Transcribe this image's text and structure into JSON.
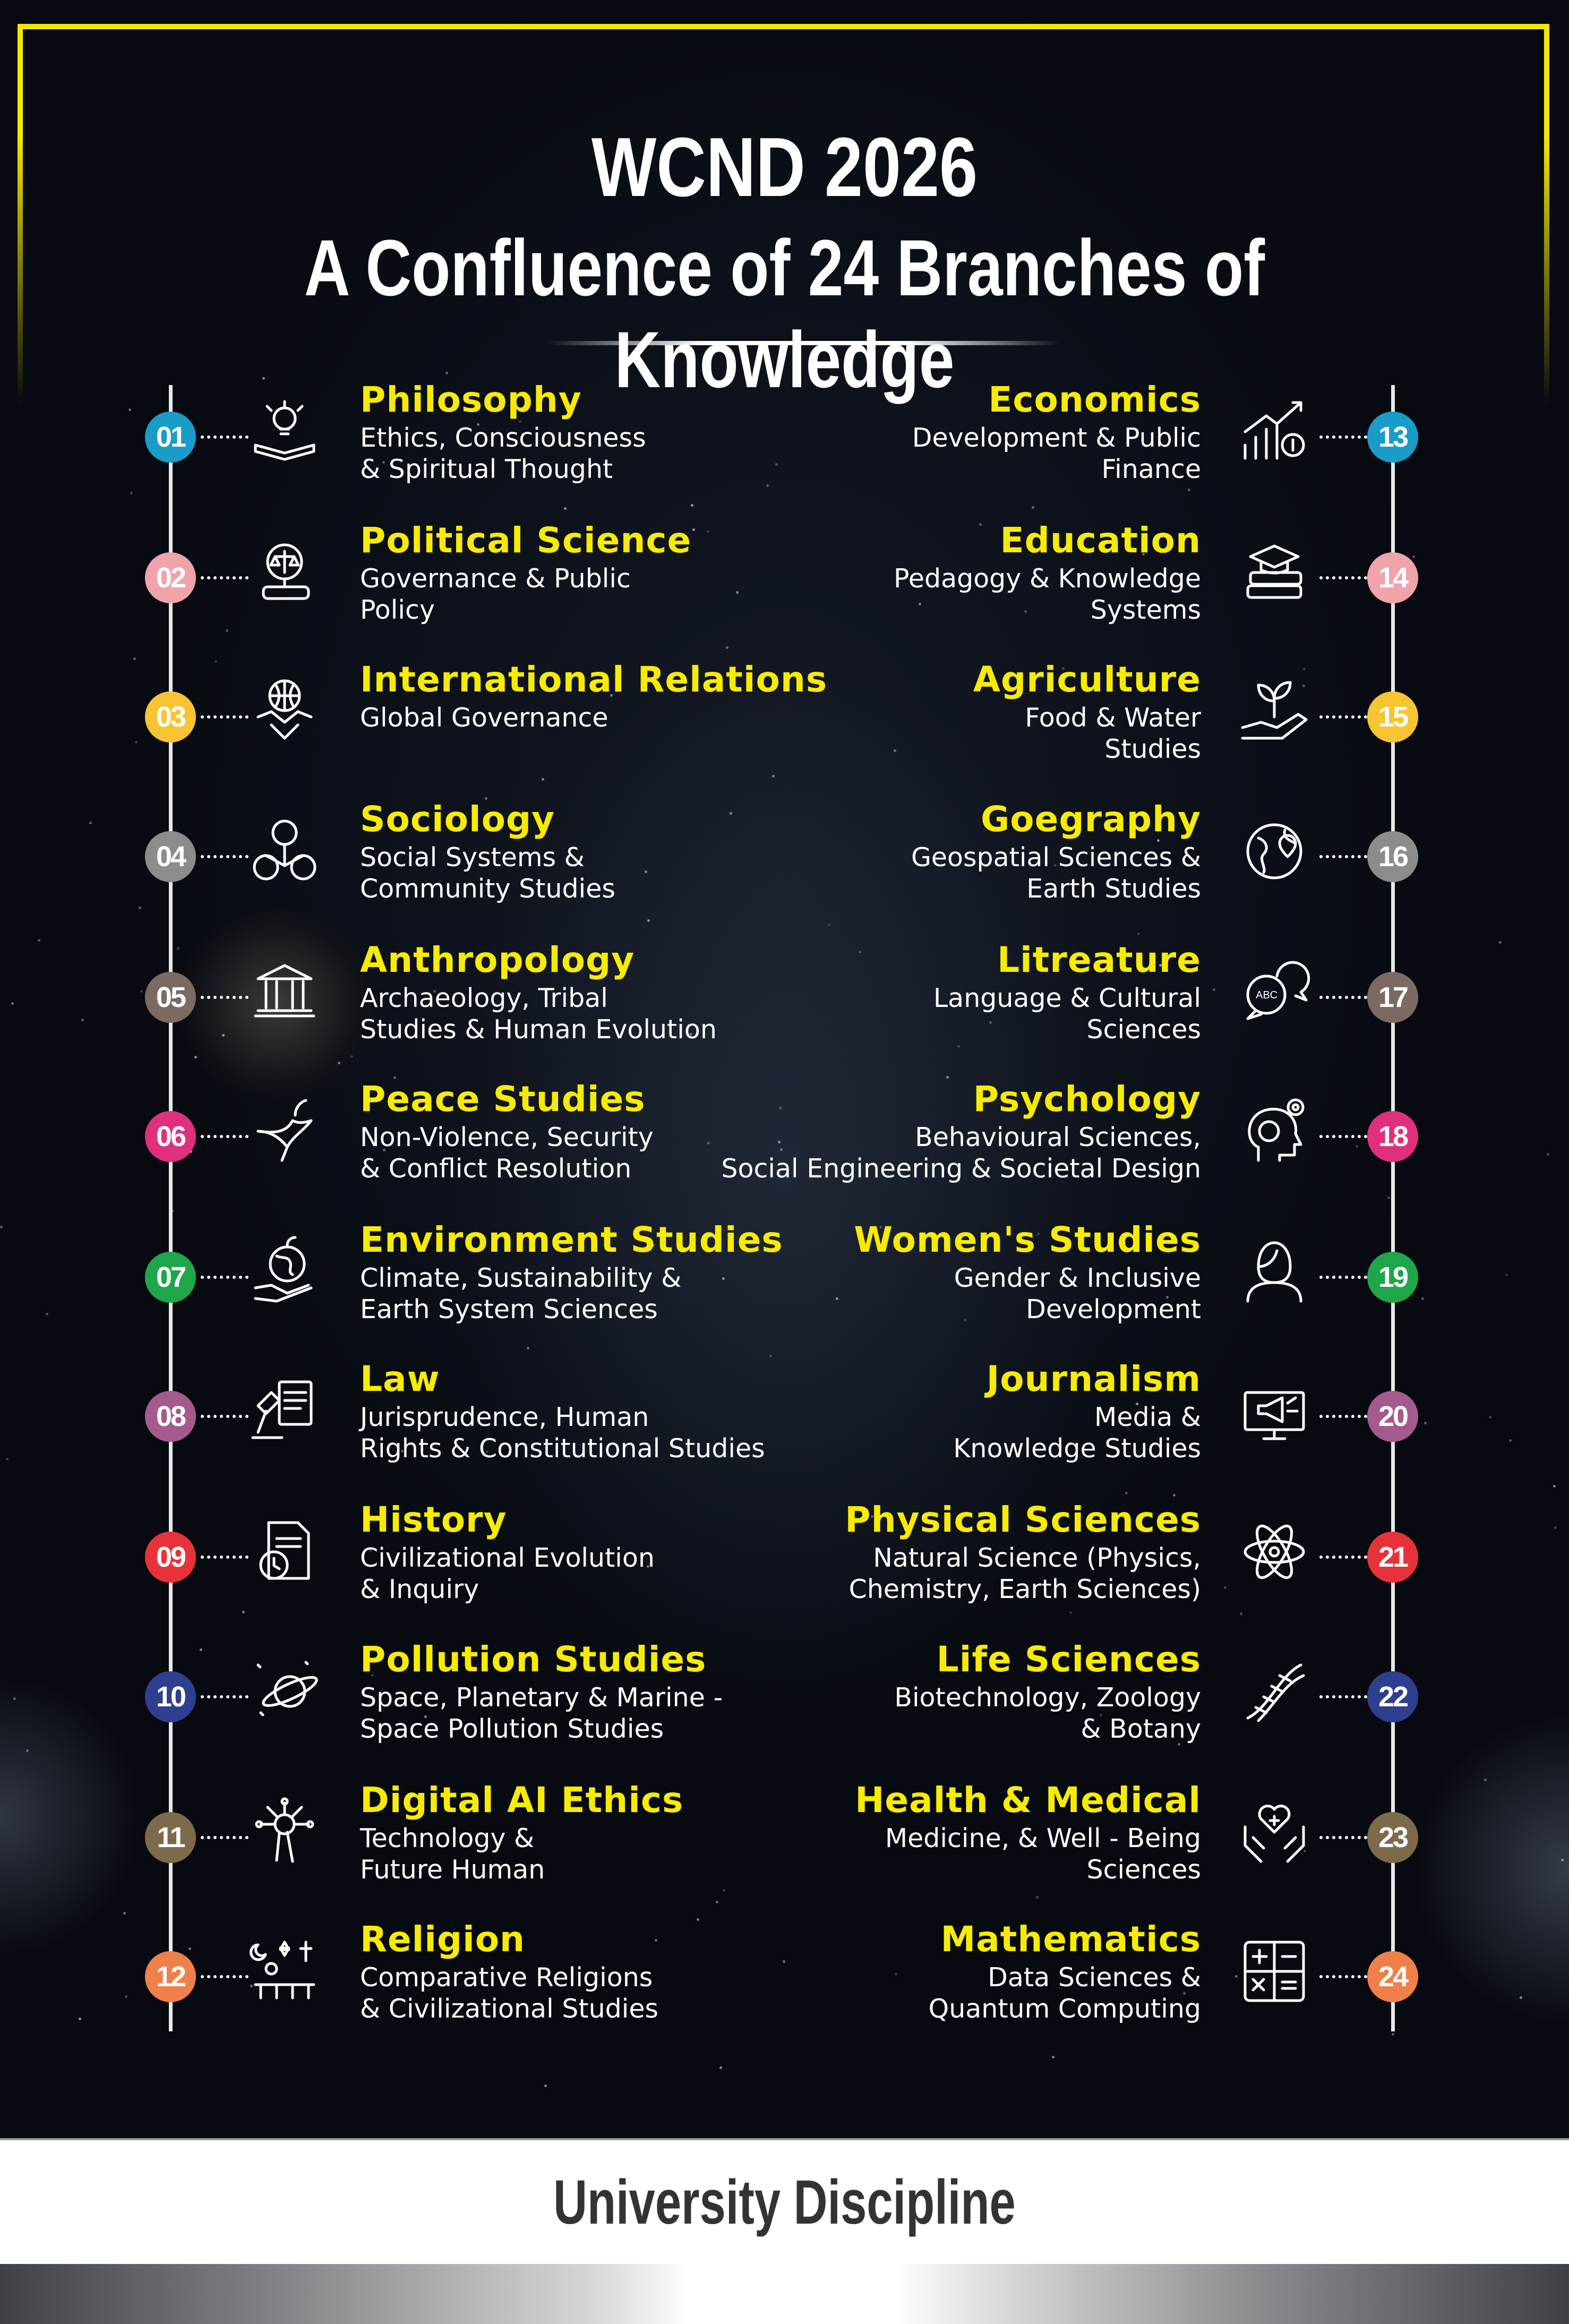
{
  "header": {
    "title_line1": "WCND 2026",
    "title_line2": "A Confluence of 24 Branches of Knowledge"
  },
  "left_items": [
    {
      "num": "01",
      "title": "Philosophy",
      "subtitle": [
        "Ethics, Consciousness",
        "& Spiritual Thought"
      ],
      "icon": "lightbulb-book-icon",
      "color": "#1a9cc9"
    },
    {
      "num": "02",
      "title": "Political Science",
      "subtitle": [
        "Governance & Public",
        "Policy"
      ],
      "icon": "scales-globe-icon",
      "color": "#f1a3aa"
    },
    {
      "num": "03",
      "title": "International Relations",
      "subtitle": [
        "Global Governance"
      ],
      "icon": "globe-handshake-icon",
      "color": "#f7c531"
    },
    {
      "num": "04",
      "title": "Sociology",
      "subtitle": [
        "Social Systems &",
        "Community Studies"
      ],
      "icon": "people-network-icon",
      "color": "#8c8c8c"
    },
    {
      "num": "05",
      "title": "Anthropology",
      "subtitle": [
        "Archaeology, Tribal",
        "Studies & Human Evolution"
      ],
      "icon": "museum-icon",
      "color": "#7b6a62"
    },
    {
      "num": "06",
      "title": "Peace Studies",
      "subtitle": [
        "Non-Violence, Security",
        "& Conflict Resolution"
      ],
      "icon": "dove-icon",
      "color": "#e0307d"
    },
    {
      "num": "07",
      "title": "Environment Studies",
      "subtitle": [
        "Climate, Sustainability &",
        "Earth System Sciences"
      ],
      "icon": "earth-hand-icon",
      "color": "#1fa64a"
    },
    {
      "num": "08",
      "title": "Law",
      "subtitle": [
        "Jurisprudence, Human",
        "Rights & Constitutional Studies"
      ],
      "icon": "gavel-document-icon",
      "color": "#a55a8e"
    },
    {
      "num": "09",
      "title": "History",
      "subtitle": [
        "Civilizational Evolution",
        "& Inquiry"
      ],
      "icon": "history-document-icon",
      "color": "#e8323a"
    },
    {
      "num": "10",
      "title": "Pollution Studies",
      "subtitle": [
        "Space, Planetary & Marine -",
        "Space Pollution Studies"
      ],
      "icon": "planet-icon",
      "color": "#2e3f8f"
    },
    {
      "num": "11",
      "title": "Digital AI Ethics",
      "subtitle": [
        "Technology &",
        "Future Human"
      ],
      "icon": "ai-hand-icon",
      "color": "#7d6a4a"
    },
    {
      "num": "12",
      "title": "Religion",
      "subtitle": [
        "Comparative Religions",
        "& Civilizational Studies"
      ],
      "icon": "religion-symbols-icon",
      "color": "#f0804a"
    }
  ],
  "right_items": [
    {
      "num": "13",
      "title": "Economics",
      "subtitle": [
        "Development & Public",
        "Finance"
      ],
      "icon": "growth-chart-icon",
      "color": "#1a9cc9"
    },
    {
      "num": "14",
      "title": "Education",
      "subtitle": [
        "Pedagogy & Knowledge",
        "Systems"
      ],
      "icon": "books-cap-icon",
      "color": "#f1a3aa"
    },
    {
      "num": "15",
      "title": "Agriculture",
      "subtitle": [
        "Food & Water",
        "Studies"
      ],
      "icon": "plant-hand-icon",
      "color": "#f7c531"
    },
    {
      "num": "16",
      "title": "Goegraphy",
      "subtitle": [
        "Geospatial Sciences &",
        "Earth Studies"
      ],
      "icon": "globe-pin-icon",
      "color": "#8c8c8c"
    },
    {
      "num": "17",
      "title": "Litreature",
      "subtitle": [
        "Language & Cultural",
        "Sciences"
      ],
      "icon": "speech-bubbles-icon",
      "color": "#7b6a62"
    },
    {
      "num": "18",
      "title": "Psychology",
      "subtitle": [
        "Behavioural Sciences,",
        "Social Engineering & Societal Design"
      ],
      "icon": "head-brain-icon",
      "color": "#e0307d"
    },
    {
      "num": "19",
      "title": "Women's Studies",
      "subtitle": [
        "Gender & Inclusive",
        "Development"
      ],
      "icon": "woman-icon",
      "color": "#1fa64a"
    },
    {
      "num": "20",
      "title": "Journalism",
      "subtitle": [
        "Media &",
        "Knowledge Studies"
      ],
      "icon": "megaphone-monitor-icon",
      "color": "#a55a8e"
    },
    {
      "num": "21",
      "title": "Physical Sciences",
      "subtitle": [
        "Natural Science (Physics,",
        "Chemistry, Earth Sciences)"
      ],
      "icon": "atom-icon",
      "color": "#e8323a"
    },
    {
      "num": "22",
      "title": "Life Sciences",
      "subtitle": [
        "Biotechnology, Zoology",
        "& Botany"
      ],
      "icon": "dna-icon",
      "color": "#2e3f8f"
    },
    {
      "num": "23",
      "title": "Health & Medical",
      "subtitle": [
        "Medicine, & Well - Being",
        "Sciences"
      ],
      "icon": "medical-hands-icon",
      "color": "#7d6a4a"
    },
    {
      "num": "24",
      "title": "Mathematics",
      "subtitle": [
        "Data Sciences &",
        "Quantum Computing"
      ],
      "icon": "calculator-icon",
      "color": "#f0804a"
    }
  ],
  "footer": {
    "label": "University Discipline"
  },
  "colors": {
    "accent_yellow": "#f7ec00",
    "frame": "#f4e600",
    "background": "#070a10"
  }
}
